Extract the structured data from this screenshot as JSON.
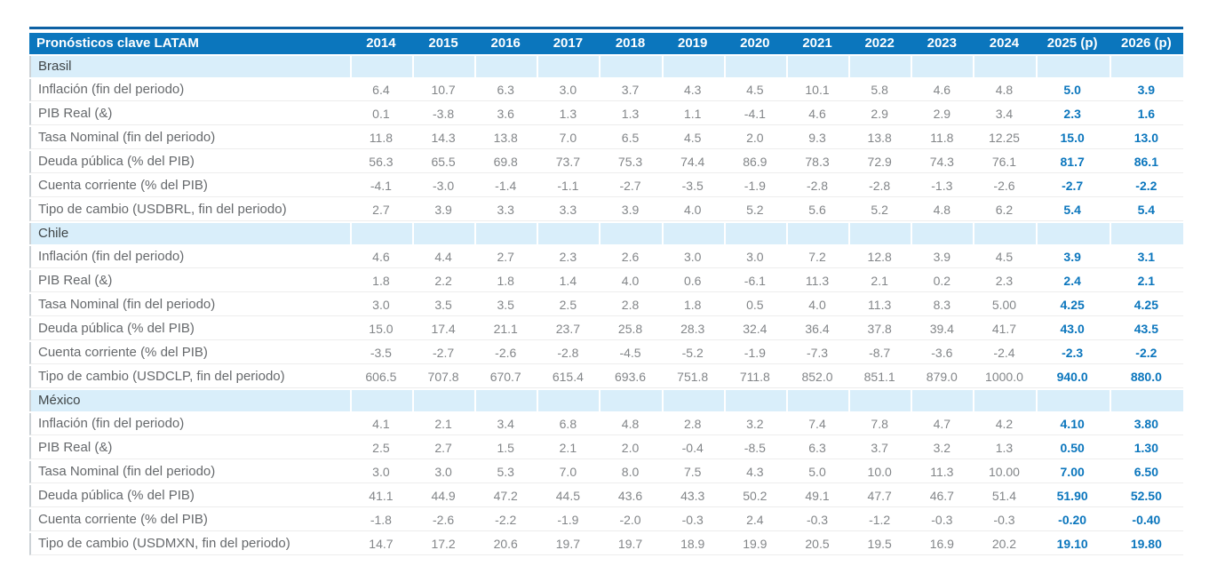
{
  "colors": {
    "header_bg": "#0b76bd",
    "top_accent_line": "#0d61a4",
    "section_bg": "#d9eefa",
    "forecast_text": "#0b76bd",
    "label_text": "#66696c",
    "value_text": "#838689"
  },
  "chart_data": {
    "type": "table",
    "title": "Pronósticos clave LATAM",
    "years": [
      "2014",
      "2015",
      "2016",
      "2017",
      "2018",
      "2019",
      "2020",
      "2021",
      "2022",
      "2023",
      "2024",
      "2025 (p)",
      "2026 (p)"
    ],
    "forecast_columns": [
      "2025 (p)",
      "2026 (p)"
    ],
    "sections": [
      {
        "name": "Brasil",
        "rows": [
          {
            "label": "Inflación (fin del periodo)",
            "values": [
              "6.4",
              "10.7",
              "6.3",
              "3.0",
              "3.7",
              "4.3",
              "4.5",
              "10.1",
              "5.8",
              "4.6",
              "4.8",
              "5.0",
              "3.9"
            ]
          },
          {
            "label": "PIB Real (&)",
            "values": [
              "0.1",
              "-3.8",
              "3.6",
              "1.3",
              "1.3",
              "1.1",
              "-4.1",
              "4.6",
              "2.9",
              "2.9",
              "3.4",
              "2.3",
              "1.6"
            ]
          },
          {
            "label": "Tasa Nominal (fin del periodo)",
            "values": [
              "11.8",
              "14.3",
              "13.8",
              "7.0",
              "6.5",
              "4.5",
              "2.0",
              "9.3",
              "13.8",
              "11.8",
              "12.25",
              "15.0",
              "13.0"
            ]
          },
          {
            "label": "Deuda pública (% del PIB)",
            "values": [
              "56.3",
              "65.5",
              "69.8",
              "73.7",
              "75.3",
              "74.4",
              "86.9",
              "78.3",
              "72.9",
              "74.3",
              "76.1",
              "81.7",
              "86.1"
            ]
          },
          {
            "label": "Cuenta corriente (% del PIB)",
            "values": [
              "-4.1",
              "-3.0",
              "-1.4",
              "-1.1",
              "-2.7",
              "-3.5",
              "-1.9",
              "-2.8",
              "-2.8",
              "-1.3",
              "-2.6",
              "-2.7",
              "-2.2"
            ]
          },
          {
            "label": "Tipo de cambio (USDBRL, fin del periodo)",
            "values": [
              "2.7",
              "3.9",
              "3.3",
              "3.3",
              "3.9",
              "4.0",
              "5.2",
              "5.6",
              "5.2",
              "4.8",
              "6.2",
              "5.4",
              "5.4"
            ]
          }
        ]
      },
      {
        "name": "Chile",
        "rows": [
          {
            "label": "Inflación (fin del periodo)",
            "values": [
              "4.6",
              "4.4",
              "2.7",
              "2.3",
              "2.6",
              "3.0",
              "3.0",
              "7.2",
              "12.8",
              "3.9",
              "4.5",
              "3.9",
              "3.1"
            ]
          },
          {
            "label": "PIB Real (&)",
            "values": [
              "1.8",
              "2.2",
              "1.8",
              "1.4",
              "4.0",
              "0.6",
              "-6.1",
              "11.3",
              "2.1",
              "0.2",
              "2.3",
              "2.4",
              "2.1"
            ]
          },
          {
            "label": "Tasa Nominal (fin del periodo)",
            "values": [
              "3.0",
              "3.5",
              "3.5",
              "2.5",
              "2.8",
              "1.8",
              "0.5",
              "4.0",
              "11.3",
              "8.3",
              "5.00",
              "4.25",
              "4.25"
            ]
          },
          {
            "label": "Deuda pública (% del PIB)",
            "values": [
              "15.0",
              "17.4",
              "21.1",
              "23.7",
              "25.8",
              "28.3",
              "32.4",
              "36.4",
              "37.8",
              "39.4",
              "41.7",
              "43.0",
              "43.5"
            ]
          },
          {
            "label": "Cuenta corriente (% del PIB)",
            "values": [
              "-3.5",
              "-2.7",
              "-2.6",
              "-2.8",
              "-4.5",
              "-5.2",
              "-1.9",
              "-7.3",
              "-8.7",
              "-3.6",
              "-2.4",
              "-2.3",
              "-2.2"
            ]
          },
          {
            "label": "Tipo de cambio (USDCLP, fin del periodo)",
            "values": [
              "606.5",
              "707.8",
              "670.7",
              "615.4",
              "693.6",
              "751.8",
              "711.8",
              "852.0",
              "851.1",
              "879.0",
              "1000.0",
              "940.0",
              "880.0"
            ]
          }
        ]
      },
      {
        "name": "México",
        "rows": [
          {
            "label": "Inflación (fin del periodo)",
            "values": [
              "4.1",
              "2.1",
              "3.4",
              "6.8",
              "4.8",
              "2.8",
              "3.2",
              "7.4",
              "7.8",
              "4.7",
              "4.2",
              "4.10",
              "3.80"
            ]
          },
          {
            "label": "PIB Real (&)",
            "values": [
              "2.5",
              "2.7",
              "1.5",
              "2.1",
              "2.0",
              "-0.4",
              "-8.5",
              "6.3",
              "3.7",
              "3.2",
              "1.3",
              "0.50",
              "1.30"
            ]
          },
          {
            "label": "Tasa Nominal (fin del periodo)",
            "values": [
              "3.0",
              "3.0",
              "5.3",
              "7.0",
              "8.0",
              "7.5",
              "4.3",
              "5.0",
              "10.0",
              "11.3",
              "10.00",
              "7.00",
              "6.50"
            ]
          },
          {
            "label": "Deuda pública (% del PIB)",
            "values": [
              "41.1",
              "44.9",
              "47.2",
              "44.5",
              "43.6",
              "43.3",
              "50.2",
              "49.1",
              "47.7",
              "46.7",
              "51.4",
              "51.90",
              "52.50"
            ]
          },
          {
            "label": "Cuenta corriente (% del PIB)",
            "values": [
              "-1.8",
              "-2.6",
              "-2.2",
              "-1.9",
              "-2.0",
              "-0.3",
              "2.4",
              "-0.3",
              "-1.2",
              "-0.3",
              "-0.3",
              "-0.20",
              "-0.40"
            ]
          },
          {
            "label": "Tipo de cambio (USDMXN, fin del periodo)",
            "values": [
              "14.7",
              "17.2",
              "20.6",
              "19.7",
              "19.7",
              "18.9",
              "19.9",
              "20.5",
              "19.5",
              "16.9",
              "20.2",
              "19.10",
              "19.80"
            ]
          }
        ]
      }
    ]
  }
}
